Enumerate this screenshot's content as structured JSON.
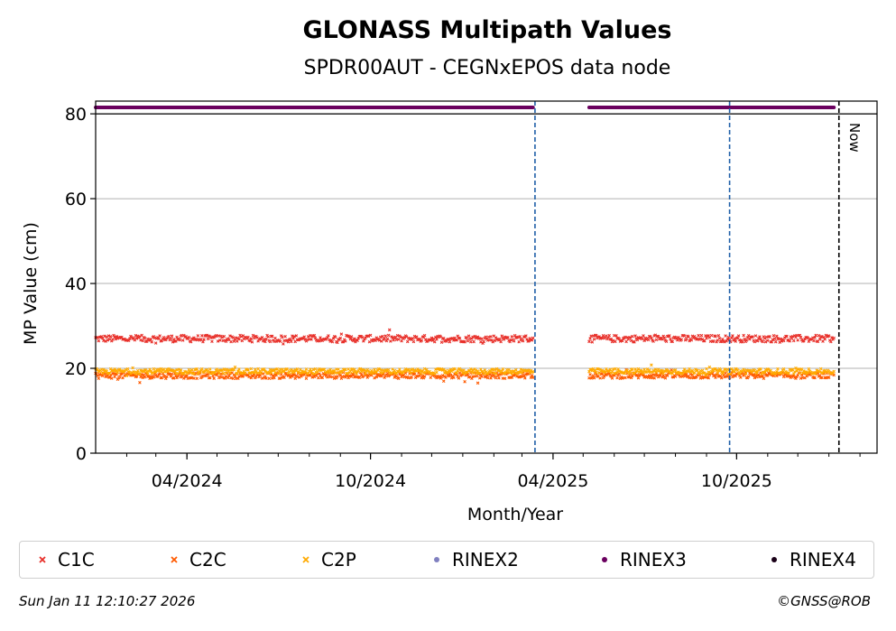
{
  "chart_data": {
    "type": "scatter",
    "title": "GLONASS Multipath Values",
    "subtitle": "SPDR00AUT - CEGNxEPOS data node",
    "xlabel": "Month/Year",
    "ylabel": "MP Value (cm)",
    "x_range": [
      "2024-01-01",
      "2026-02-18"
    ],
    "ylim": [
      0,
      83
    ],
    "y_ticks": [
      0,
      20,
      40,
      60,
      80
    ],
    "x_ticks": [
      {
        "date": "2024-04-01",
        "label": "04/2024"
      },
      {
        "date": "2024-10-01",
        "label": "10/2024"
      },
      {
        "date": "2025-04-01",
        "label": "04/2025"
      },
      {
        "date": "2025-10-01",
        "label": "10/2025"
      }
    ],
    "grid": "horizontal",
    "vertical_markers": [
      {
        "date": "2025-03-14",
        "color": "#1f5fa8",
        "style": "dashed"
      },
      {
        "date": "2025-09-24",
        "color": "#1f5fa8",
        "style": "dashed"
      },
      {
        "date": "2026-01-11",
        "color": "#000000",
        "style": "dashed",
        "label": "Now"
      }
    ],
    "data_gap": [
      "2025-03-12",
      "2025-05-07"
    ],
    "series": [
      {
        "name": "C1C",
        "marker": "x",
        "color": "#e8302a",
        "level": 27.0,
        "spread": 0.8,
        "segments": [
          [
            "2024-01-01",
            "2025-03-12"
          ],
          [
            "2025-05-07",
            "2026-01-06"
          ]
        ]
      },
      {
        "name": "C2C",
        "marker": "x",
        "color": "#ff5a00",
        "level": 18.3,
        "spread": 0.7,
        "segments": [
          [
            "2024-01-01",
            "2025-03-12"
          ],
          [
            "2025-05-07",
            "2026-01-06"
          ]
        ]
      },
      {
        "name": "C2P",
        "marker": "x",
        "color": "#ffaa00",
        "level": 19.3,
        "spread": 0.6,
        "segments": [
          [
            "2024-01-01",
            "2025-03-12"
          ],
          [
            "2025-05-07",
            "2026-01-06"
          ]
        ]
      },
      {
        "name": "RINEX2",
        "marker": "dot",
        "color": "#8080c0",
        "segments": []
      },
      {
        "name": "RINEX3",
        "marker": "dot",
        "color": "#6a005f",
        "level": 81.5,
        "segments": [
          [
            "2024-01-01",
            "2025-03-12"
          ],
          [
            "2025-05-07",
            "2026-01-06"
          ]
        ]
      },
      {
        "name": "RINEX4",
        "marker": "dot",
        "color": "#1a0018",
        "segments": []
      }
    ],
    "legend_position": "bottom"
  },
  "footer": {
    "timestamp": "Sun Jan 11 12:10:27 2026",
    "copyright": "©GNSS@ROB"
  }
}
